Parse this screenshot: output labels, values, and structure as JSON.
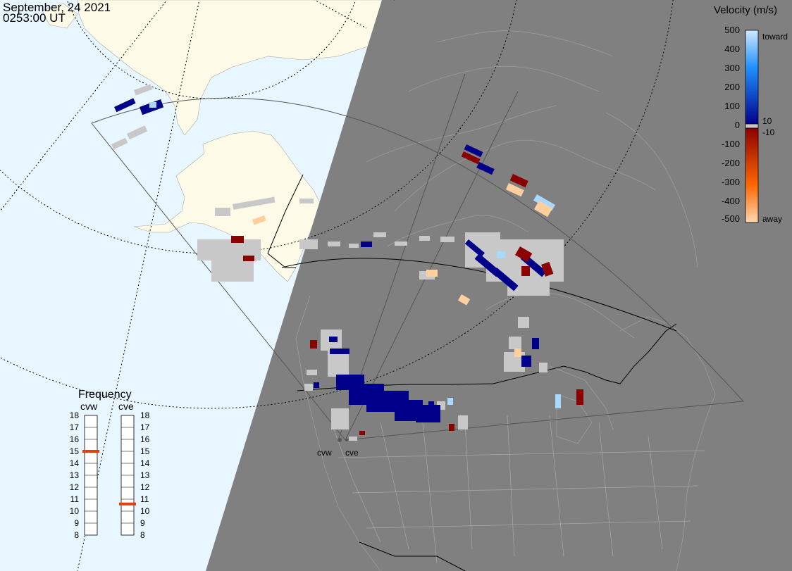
{
  "timestamp": {
    "date": "September, 24 2021",
    "time": "0253:00 UT"
  },
  "velocity_scale": {
    "title": "Velocity (m/s)",
    "ticks": [
      "500",
      "400",
      "300",
      "200",
      "100",
      "0",
      "-100",
      "-200",
      "-300",
      "-400",
      "-500"
    ],
    "inner_ticks": [
      "10",
      "-10"
    ],
    "toward_label": "toward",
    "away_label": "away",
    "colors": {
      "toward_light": "#cfeaff",
      "toward_mid": "#1e90ff",
      "toward_dark": "#00008b",
      "away_dark": "#8b0000",
      "away_mid": "#ff6600",
      "away_light": "#ffd8b0",
      "ground_scatter": "#c8c8c8"
    }
  },
  "frequency_panel": {
    "title": "Frequency",
    "radars": [
      {
        "name": "cvw",
        "frequency": 15
      },
      {
        "name": "cve",
        "frequency": 10.6
      }
    ],
    "ticks": [
      "18",
      "17",
      "16",
      "15",
      "14",
      "13",
      "12",
      "11",
      "10",
      "9",
      "8"
    ]
  },
  "radar_sites": [
    {
      "name": "cvw"
    },
    {
      "name": "cve"
    }
  ],
  "map_colors": {
    "ocean": "#e8f6ff",
    "land": "#fdfbe8",
    "night_shade": "#808080",
    "night_lines": "#a0a0a0"
  }
}
